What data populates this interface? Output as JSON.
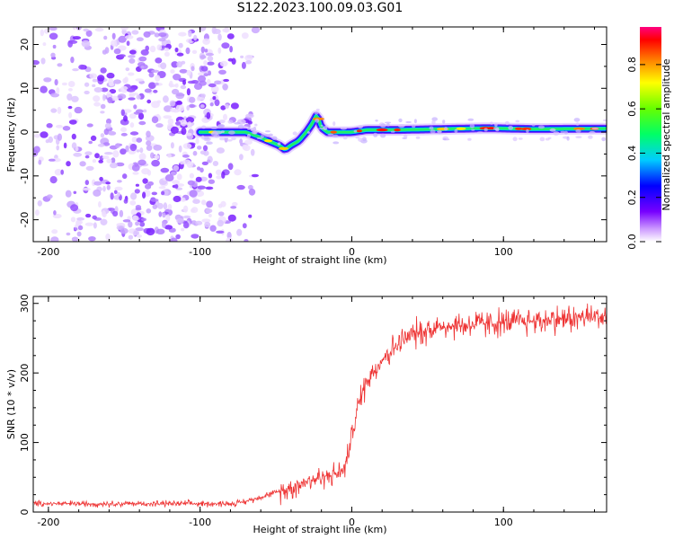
{
  "title": "S122.2023.100.09.03.G01",
  "chart_data": [
    {
      "type": "heatmap",
      "xlabel": "Height of straight line (km)",
      "ylabel": "Frequency (Hz)",
      "xlim": [
        -210,
        168
      ],
      "ylim": [
        -25,
        24
      ],
      "xticks": [
        -200,
        -100,
        0,
        100
      ],
      "yticks": [
        -20,
        -10,
        0,
        10,
        20
      ],
      "noise_region_x": [
        -210,
        -70
      ],
      "signal_ridge": {
        "x": [
          -100,
          -90,
          -80,
          -70,
          -62,
          -55,
          -48,
          -44,
          -40,
          -35,
          -30,
          -26,
          -23,
          -20,
          -16,
          -10,
          -5,
          0,
          10,
          30,
          60,
          90,
          120,
          168
        ],
        "y": [
          0,
          0,
          0,
          0,
          -1,
          -2,
          -3,
          -4,
          -3,
          -2,
          0,
          2,
          4,
          1,
          0,
          0,
          0,
          0,
          0.5,
          0.5,
          0.7,
          0.9,
          0.7,
          0.8
        ]
      },
      "colorbar": {
        "label": "Normalized spectral amplitude",
        "range": [
          0.0,
          0.97
        ],
        "ticks": [
          "0.0",
          "0.2",
          "0.4",
          "0.6",
          "0.8"
        ]
      }
    },
    {
      "type": "line",
      "xlabel": "Height of straight line (km)",
      "ylabel": "SNR (10 * v/v)",
      "xlim": [
        -210,
        168
      ],
      "ylim": [
        0,
        310
      ],
      "xticks": [
        -200,
        -100,
        0,
        100
      ],
      "yticks": [
        0,
        100,
        200,
        300
      ],
      "line_color": "#ee3333",
      "series": [
        {
          "x": [
            -210,
            -150,
            -100,
            -80,
            -70,
            -60,
            -50,
            -40,
            -30,
            -20,
            -10,
            -5,
            0,
            5,
            10,
            20,
            30,
            40,
            50,
            60,
            70,
            80,
            100,
            120,
            140,
            168
          ],
          "values": [
            12,
            12,
            12,
            12,
            15,
            22,
            28,
            35,
            45,
            50,
            55,
            60,
            110,
            160,
            190,
            220,
            240,
            255,
            262,
            268,
            268,
            270,
            272,
            275,
            278,
            282
          ]
        }
      ]
    }
  ]
}
